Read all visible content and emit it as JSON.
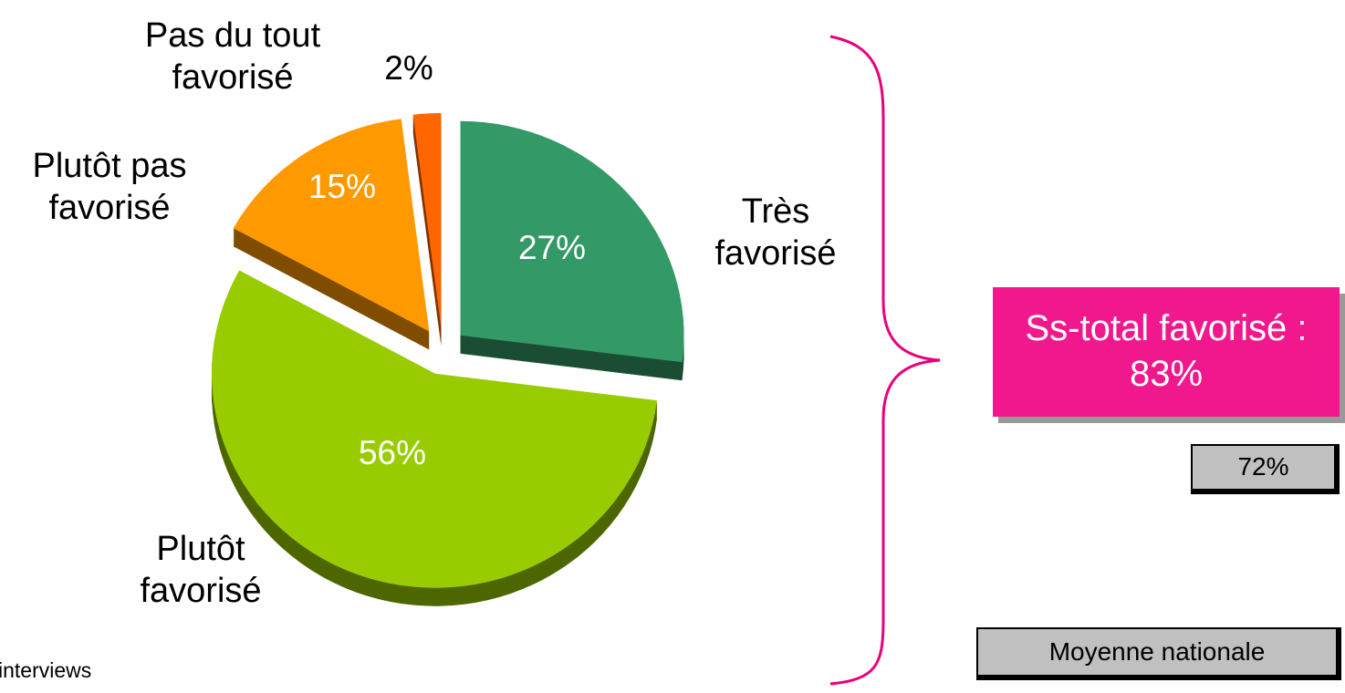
{
  "chart_data": {
    "type": "pie",
    "categories": [
      "Très favorisé",
      "Plutôt favorisé",
      "Plutôt pas favorisé",
      "Pas du tout favorisé"
    ],
    "values": [
      27,
      56,
      15,
      2
    ],
    "value_labels": [
      "27%",
      "56%",
      "15%",
      "2%"
    ],
    "colors": [
      "#339966",
      "#99cc00",
      "#ff9900",
      "#ff6600"
    ],
    "annotations": {
      "subtotal": "Ss-total favorisé : 83%",
      "national": "72%",
      "national_label": "Moyenne nationale",
      "note": "interviews"
    }
  }
}
